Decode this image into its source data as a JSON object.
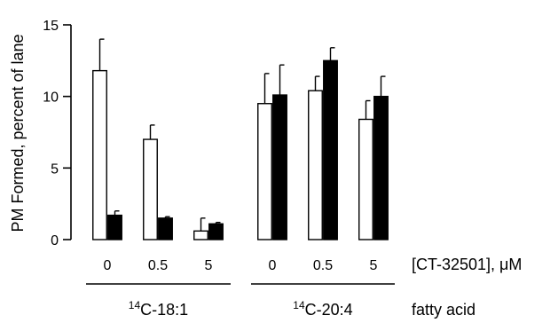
{
  "chart_data": {
    "type": "bar",
    "ylabel": "PM Formed, percent of lane",
    "ylim": [
      0,
      15
    ],
    "yticks": [
      "0",
      "5",
      "10",
      "15"
    ],
    "categories": [
      "0",
      "0.5",
      "5",
      "0",
      "0.5",
      "5"
    ],
    "x_axis_label": "[CT-32501], μM",
    "group_axis_label": "fatty acid",
    "groups": [
      {
        "label_sup": "14",
        "label_main": "C-18:1",
        "category_indices": [
          0,
          1,
          2
        ]
      },
      {
        "label_sup": "14",
        "label_main": "C-20:4",
        "category_indices": [
          3,
          4,
          5
        ]
      }
    ],
    "series": [
      {
        "values": [
          11.8,
          7.0,
          0.6,
          9.5,
          10.4,
          8.4
        ],
        "errors": [
          2.2,
          1.0,
          0.9,
          2.1,
          1.0,
          1.3
        ],
        "color": "#ffffff"
      },
      {
        "values": [
          1.7,
          1.5,
          1.1,
          10.1,
          12.5,
          10.0
        ],
        "errors": [
          0.3,
          0.1,
          0.1,
          2.1,
          0.9,
          1.4
        ],
        "color": "#000000"
      }
    ],
    "grid": false
  }
}
